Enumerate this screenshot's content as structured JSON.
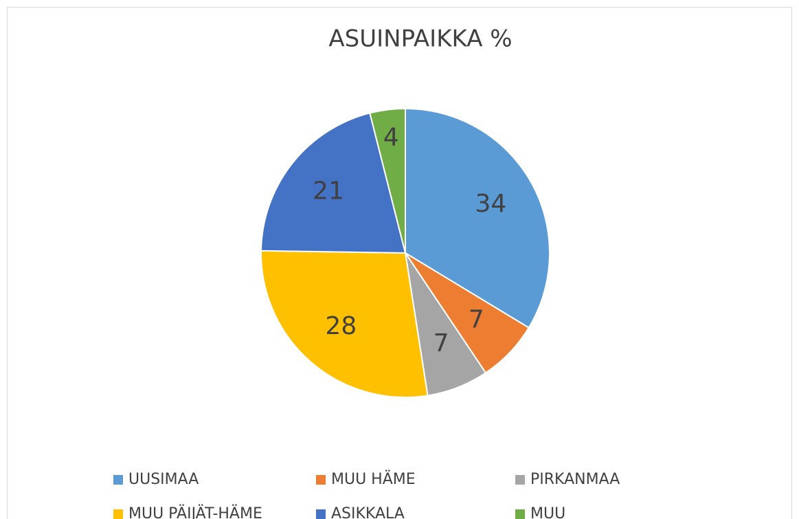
{
  "chart_data": {
    "type": "pie",
    "title": "ASUINPAIKKA %",
    "categories": [
      "UUSIMAA",
      "MUU HÄME",
      "PIRKANMAA",
      "MUU PÄIJÄT-HÄME",
      "ASIKKALA",
      "MUU"
    ],
    "values": [
      34,
      7,
      7,
      28,
      21,
      4
    ],
    "colors": [
      "#5b9bd5",
      "#ed7d31",
      "#a5a5a5",
      "#ffc000",
      "#4472c4",
      "#70ad47"
    ],
    "legend": "bottom"
  }
}
